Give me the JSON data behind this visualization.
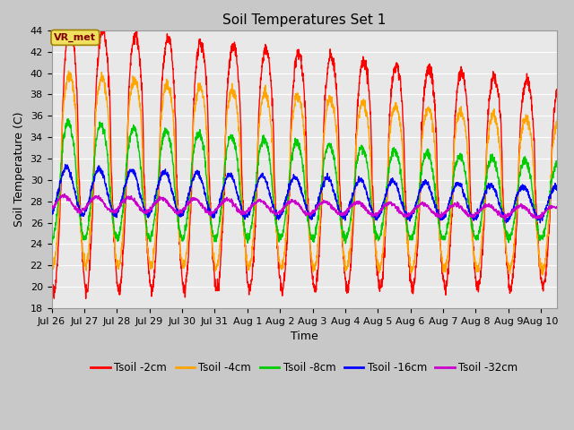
{
  "title": "Soil Temperatures Set 1",
  "xlabel": "Time",
  "ylabel": "Soil Temperature (C)",
  "ylim": [
    18,
    44
  ],
  "yticks": [
    18,
    20,
    22,
    24,
    26,
    28,
    30,
    32,
    34,
    36,
    38,
    40,
    42,
    44
  ],
  "colors": {
    "Tsoil -2cm": "#ff0000",
    "Tsoil -4cm": "#ffa500",
    "Tsoil -8cm": "#00cc00",
    "Tsoil -16cm": "#0000ff",
    "Tsoil -32cm": "#cc00cc"
  },
  "annotation_text": "VR_met",
  "num_days": 15.5,
  "points_per_day": 144,
  "figsize": [
    6.4,
    4.8
  ],
  "dpi": 100,
  "title_fontsize": 11,
  "axis_fontsize": 9,
  "tick_fontsize": 8
}
